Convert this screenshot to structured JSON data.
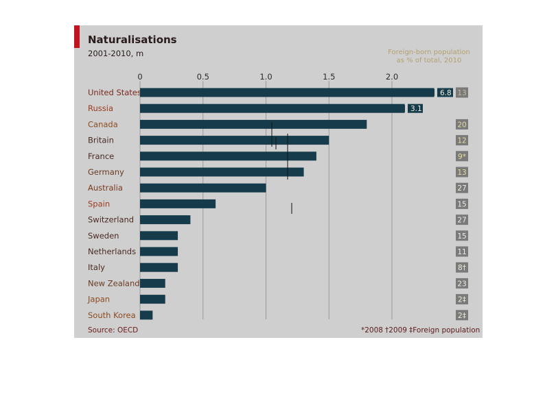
{
  "chart_data": {
    "type": "bar",
    "orientation": "horizontal",
    "title": "Naturalisations",
    "subtitle": "2001-2010, m",
    "xlim": [
      0,
      2.1
    ],
    "xticks": [
      0,
      0.5,
      1.0,
      1.5,
      2.0
    ],
    "xtick_labels": [
      "0",
      "0.5",
      "1.0",
      "1.5",
      "2.0"
    ],
    "categories": [
      "United States",
      "Russia",
      "Canada",
      "Britain",
      "France",
      "Germany",
      "Australia",
      "Spain",
      "Switzerland",
      "Sweden",
      "Netherlands",
      "Italy",
      "New Zealand",
      "Japan",
      "South Korea"
    ],
    "values": [
      6.8,
      3.1,
      1.8,
      1.5,
      1.4,
      1.3,
      1.0,
      0.6,
      0.4,
      0.3,
      0.3,
      0.3,
      0.2,
      0.2,
      0.1
    ],
    "bar_labels": [
      "6.8",
      "3.1",
      "",
      "",
      "",
      "",
      "",
      "",
      "",
      "",
      "",
      "",
      "",
      "",
      ""
    ],
    "broken_bars": [
      true,
      true,
      false,
      false,
      false,
      false,
      false,
      false,
      false,
      false,
      false,
      false,
      false,
      false,
      false
    ],
    "foreign_born_header": "Foreign-born population as % of total, 2010",
    "foreign_born": [
      "13",
      "",
      "20",
      "12",
      "9*",
      "13",
      "27",
      "15",
      "27",
      "15",
      "11",
      "8†",
      "23",
      "2‡",
      "2‡"
    ],
    "footnotes": [
      "*2008",
      "†2009",
      "‡Foreign population"
    ],
    "source": "Source: OECD",
    "grid": true,
    "colors": {
      "bar": "#163c4c",
      "accent": "#c0141e",
      "panel": "#cfcfcf",
      "grid": "#9a9a9a",
      "fb_box": "#7a7a7a"
    }
  }
}
